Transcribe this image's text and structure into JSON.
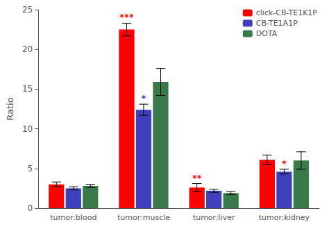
{
  "chart_data": {
    "type": "bar",
    "categories": [
      "tumor:blood",
      "tumor:muscle",
      "tumor:liver",
      "tumor:kidney"
    ],
    "series": [
      {
        "name": "click-CB-TE1K1P",
        "color": "#FF0000",
        "values": [
          3.0,
          22.5,
          2.6,
          6.1
        ],
        "errors": [
          0.3,
          0.8,
          0.5,
          0.6
        ]
      },
      {
        "name": "CB-TE1A1P",
        "color": "#4040BB",
        "values": [
          2.5,
          12.4,
          2.2,
          4.6
        ],
        "errors": [
          0.2,
          0.7,
          0.2,
          0.3
        ]
      },
      {
        "name": "DOTA",
        "color": "#3A7A4A",
        "values": [
          2.8,
          15.9,
          1.9,
          6.0
        ],
        "errors": [
          0.2,
          1.7,
          0.2,
          1.1
        ]
      }
    ],
    "annotations": [
      {
        "category": "tumor:muscle",
        "series": "click-CB-TE1K1P",
        "text": "***",
        "color": "#FF0000"
      },
      {
        "category": "tumor:muscle",
        "series": "CB-TE1A1P",
        "text": "*",
        "color": "#4040BB"
      },
      {
        "category": "tumor:liver",
        "series": "click-CB-TE1K1P",
        "text": "**",
        "color": "#FF0000"
      },
      {
        "category": "tumor:kidney",
        "series": "CB-TE1A1P",
        "text": "*",
        "color": "#FF0000"
      }
    ],
    "ylabel": "Ratio",
    "ylim": [
      0,
      25
    ],
    "yticks": [
      0,
      5,
      10,
      15,
      20,
      25
    ],
    "grid": false,
    "legend": "upper right"
  }
}
